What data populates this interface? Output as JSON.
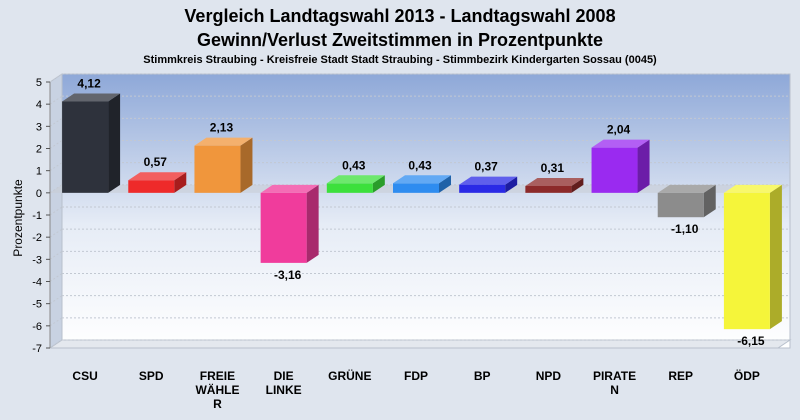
{
  "chart_data": {
    "type": "bar",
    "title_lines": [
      "Vergleich Landtagswahl 2013 - Landtagswahl 2008",
      "Gewinn/Verlust Zweitstimmen in Prozentpunkte"
    ],
    "subtitle": "Stimmkreis Straubing - Kreisfreie Stadt Stadt Straubing - Stimmbezirk Kindergarten Sossau (0045)",
    "ylabel": "Prozentpunkte",
    "xlabel": "",
    "ylim": [
      -7,
      5
    ],
    "yticks": [
      "5",
      "4",
      "3",
      "2",
      "1",
      "0",
      "-1",
      "-2",
      "-3",
      "-4",
      "-5",
      "-6",
      "-7"
    ],
    "grid": true,
    "categories": [
      [
        "CSU"
      ],
      [
        "SPD"
      ],
      [
        "FREIE",
        "WÄHLE",
        "R"
      ],
      [
        "DIE",
        "LINKE"
      ],
      [
        "GRÜNE"
      ],
      [
        "FDP"
      ],
      [
        "BP"
      ],
      [
        "NPD"
      ],
      [
        "PIRATE",
        "N"
      ],
      [
        "REP"
      ],
      [
        "ÖDP"
      ]
    ],
    "values": [
      4.12,
      0.57,
      2.13,
      -3.16,
      0.43,
      0.43,
      0.37,
      0.31,
      2.04,
      -1.1,
      -6.15
    ],
    "value_labels": [
      "4,12",
      "0,57",
      "2,13",
      "-3,16",
      "0,43",
      "0,43",
      "0,37",
      "0,31",
      "2,04",
      "-1,10",
      "-6,15"
    ],
    "colors": [
      "#2e323c",
      "#ee2a2a",
      "#f0963c",
      "#f03c9c",
      "#3ce03c",
      "#2e8cf0",
      "#2a2ae6",
      "#8c2a2a",
      "#9a2af0",
      "#8c8c8c",
      "#f5f53a"
    ]
  }
}
